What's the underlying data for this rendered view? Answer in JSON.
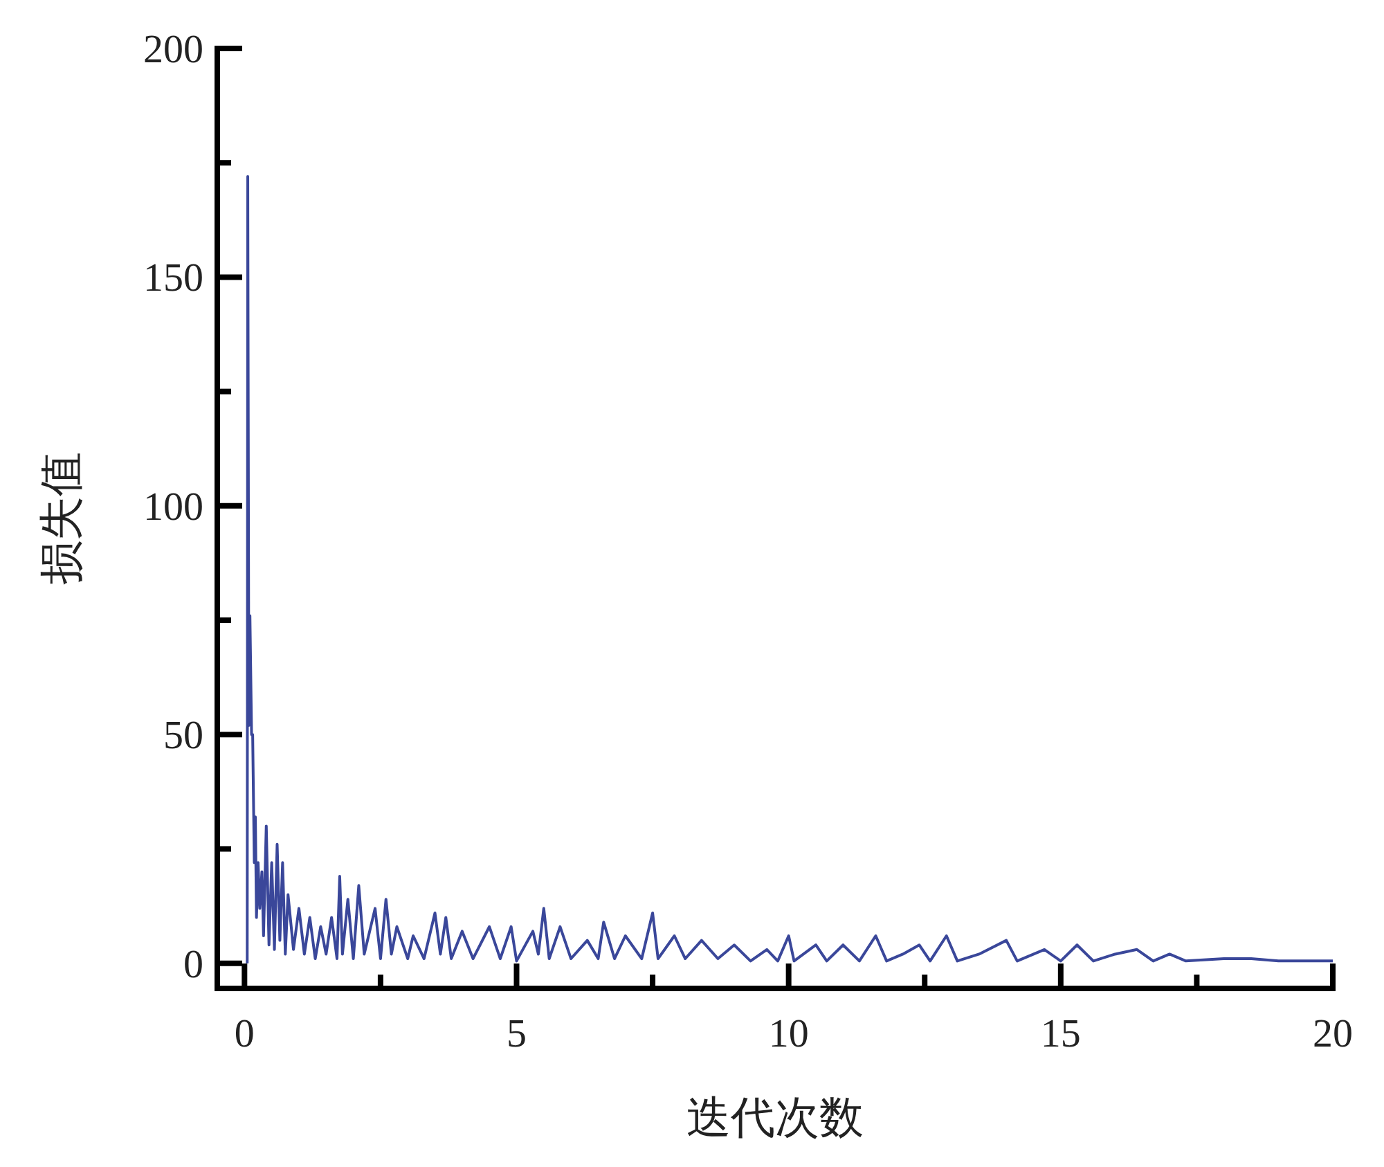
{
  "chart_data": {
    "type": "line",
    "xlabel": "迭代次数",
    "ylabel": "损失值",
    "xlim": [
      -0.5,
      20
    ],
    "ylim": [
      -5.5,
      200
    ],
    "xticks": [
      0,
      {
        "value": 2.5,
        "label": null
      },
      5,
      {
        "value": 7.5,
        "label": null
      },
      10,
      {
        "value": 12.5,
        "label": null
      },
      15,
      {
        "value": 17.5,
        "label": null
      },
      20
    ],
    "yticks": [
      0,
      {
        "value": 25,
        "label": null
      },
      50,
      {
        "value": 75,
        "label": null
      },
      100,
      {
        "value": 125,
        "label": null
      },
      150,
      {
        "value": 175,
        "label": null
      },
      200
    ],
    "grid": false,
    "marker": "none",
    "line_style": "solid",
    "series": [
      {
        "color": "#3a479a",
        "x": [
          0.05,
          0.06,
          0.08,
          0.1,
          0.13,
          0.15,
          0.18,
          0.2,
          0.22,
          0.25,
          0.28,
          0.32,
          0.35,
          0.4,
          0.45,
          0.5,
          0.55,
          0.6,
          0.65,
          0.7,
          0.75,
          0.8,
          0.9,
          1.0,
          1.1,
          1.2,
          1.3,
          1.4,
          1.5,
          1.6,
          1.7,
          1.75,
          1.8,
          1.9,
          2.0,
          2.1,
          2.2,
          2.4,
          2.5,
          2.6,
          2.7,
          2.8,
          3.0,
          3.1,
          3.3,
          3.5,
          3.6,
          3.7,
          3.8,
          4.0,
          4.2,
          4.5,
          4.7,
          4.9,
          5.0,
          5.3,
          5.4,
          5.5,
          5.6,
          5.8,
          6.0,
          6.3,
          6.5,
          6.6,
          6.8,
          7.0,
          7.3,
          7.5,
          7.6,
          7.9,
          8.1,
          8.4,
          8.7,
          9.0,
          9.3,
          9.6,
          9.8,
          10.0,
          10.1,
          10.5,
          10.7,
          11.0,
          11.3,
          11.6,
          11.8,
          12.1,
          12.4,
          12.6,
          12.9,
          13.1,
          13.5,
          14.0,
          14.2,
          14.7,
          15.0,
          15.3,
          15.6,
          16.0,
          16.4,
          16.7,
          17.0,
          17.3,
          18.0,
          18.5,
          19.0,
          19.8,
          20.0
        ],
        "values": [
          0,
          172,
          52,
          76,
          50,
          50,
          22,
          32,
          10,
          22,
          12,
          20,
          6,
          30,
          4,
          22,
          3,
          26,
          5,
          22,
          2,
          15,
          3,
          12,
          2,
          10,
          1,
          8,
          2,
          10,
          1,
          19,
          2,
          14,
          1,
          17,
          2,
          12,
          1,
          14,
          2,
          8,
          1,
          6,
          1,
          11,
          2,
          10,
          1,
          7,
          1,
          8,
          1,
          8,
          0.5,
          7,
          2,
          12,
          1,
          8,
          1,
          5,
          1,
          9,
          1,
          6,
          1,
          11,
          1,
          6,
          1,
          5,
          1,
          4,
          0.5,
          3,
          0.5,
          6,
          0.5,
          4,
          0.5,
          4,
          0.5,
          6,
          0.5,
          2,
          4,
          0.5,
          6,
          0.5,
          2,
          5,
          0.5,
          3,
          0.5,
          4,
          0.5,
          2,
          3,
          0.5,
          2,
          0.5,
          1,
          1,
          0.5,
          0.5,
          0.5
        ]
      }
    ]
  }
}
